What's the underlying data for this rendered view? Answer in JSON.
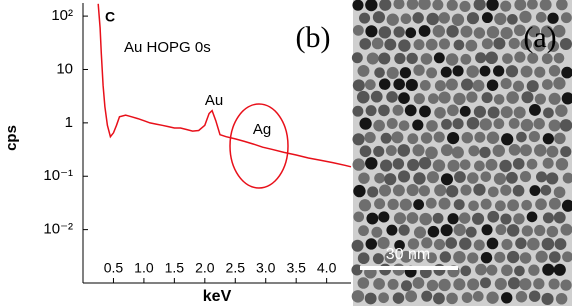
{
  "chart_data": {
    "type": "line",
    "annotations": {
      "element": "C",
      "sample": "Au HOPG 0s",
      "panel_b": "(b)",
      "au_peak": "Au",
      "ag_region": "Ag",
      "panel_a": "(a)",
      "scale_bar": "30 nm"
    },
    "x_label": "keV",
    "y_label": "cps",
    "log_y": true,
    "x": [
      0.25,
      0.28,
      0.3,
      0.33,
      0.36,
      0.4,
      0.45,
      0.5,
      0.55,
      0.6,
      0.7,
      0.8,
      0.9,
      1.0,
      1.1,
      1.2,
      1.3,
      1.4,
      1.5,
      1.6,
      1.7,
      1.8,
      1.9,
      2.0,
      2.07,
      2.12,
      2.18,
      2.25,
      2.35,
      2.5,
      2.65,
      2.8,
      2.95,
      3.1,
      3.3,
      3.5,
      3.7,
      3.9,
      4.1,
      4.3,
      4.4
    ],
    "series": [
      {
        "color": "#e8101a",
        "values": [
          170,
          60,
          20,
          5,
          2,
          0.9,
          0.55,
          0.65,
          0.9,
          1.3,
          1.4,
          1.3,
          1.2,
          1.1,
          1.0,
          0.95,
          0.9,
          0.85,
          0.8,
          0.8,
          0.75,
          0.7,
          0.72,
          0.9,
          1.5,
          1.7,
          1.1,
          0.6,
          0.55,
          0.5,
          0.45,
          0.4,
          0.35,
          0.32,
          0.28,
          0.25,
          0.22,
          0.2,
          0.18,
          0.16,
          0.15
        ]
      }
    ],
    "xlim": [
      0,
      4.4
    ],
    "ylim": [
      0.001,
      176
    ],
    "xticks": [
      0.5,
      {
        "value": 1,
        "label": "1.0"
      },
      1.5,
      {
        "value": 2,
        "label": "2.0"
      },
      2.5,
      {
        "value": 3,
        "label": "3.0"
      },
      3.5,
      {
        "value": 4,
        "label": "4.0"
      }
    ],
    "yticks": [
      {
        "value": 0.01,
        "label": "10⁻²"
      },
      {
        "value": 0.1,
        "label": "10⁻¹"
      },
      1,
      10,
      {
        "value": 100,
        "label": "10²"
      }
    ]
  }
}
